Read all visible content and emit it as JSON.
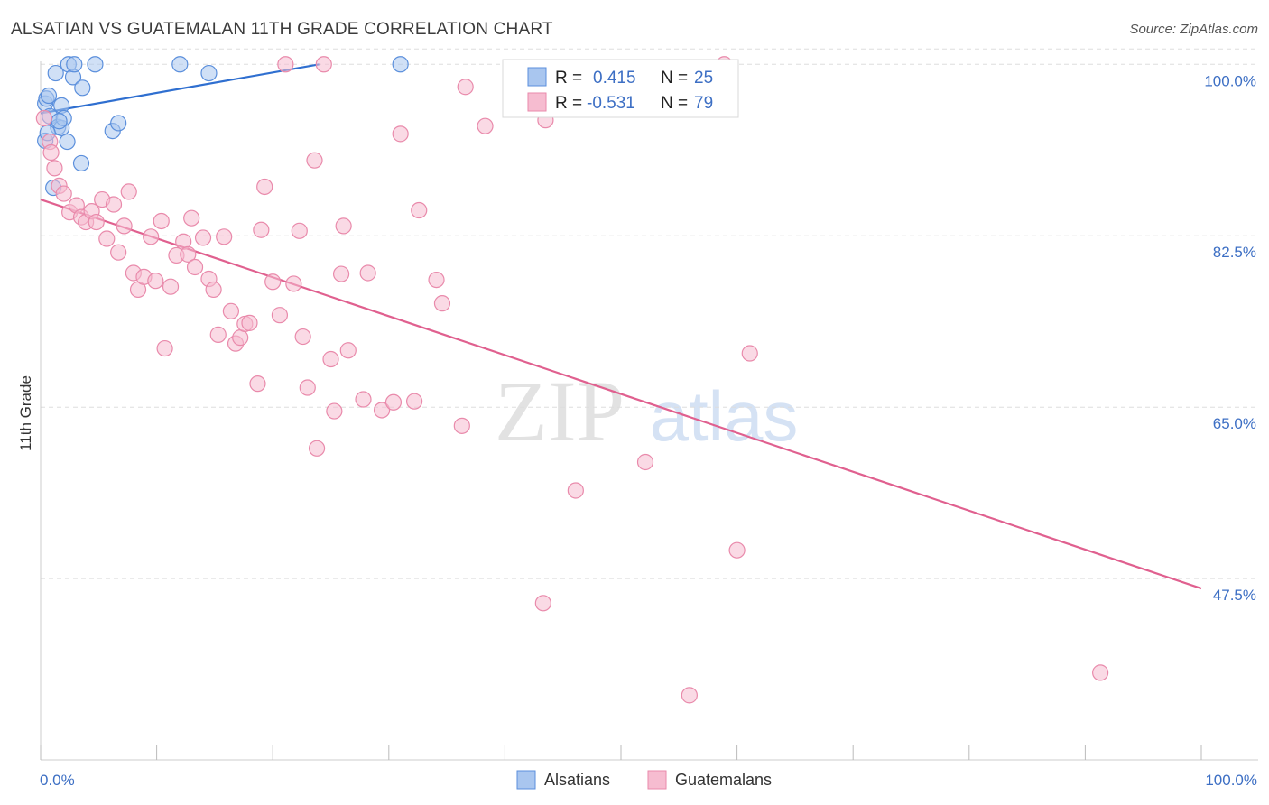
{
  "title": "ALSATIAN VS GUATEMALAN 11TH GRADE CORRELATION CHART",
  "source": "Source: ZipAtlas.com",
  "watermark": {
    "zip": "ZIP",
    "atlas": "atlas"
  },
  "colors": {
    "blue_fill": "#a9c6ef",
    "blue_stroke": "#5b8fdc",
    "blue_line": "#2f6fd0",
    "pink_fill": "#f6bcd0",
    "pink_stroke": "#e98aab",
    "pink_line": "#e0608f",
    "tick_text": "#3d6fc4",
    "grid": "#dddddd"
  },
  "legend": {
    "rows": [
      {
        "r_label": "R =",
        "r_value": "0.415",
        "n_label": "N =",
        "n_value": "25",
        "series": "blue"
      },
      {
        "r_label": "R =",
        "r_value": "-0.531",
        "n_label": "N =",
        "n_value": "79",
        "series": "pink"
      }
    ]
  },
  "chart_data": {
    "type": "scatter",
    "title": "ALSATIAN VS GUATEMALAN 11TH GRADE CORRELATION CHART",
    "xlabel": "",
    "ylabel": "11th Grade",
    "xlim": [
      0,
      100
    ],
    "ylim": [
      29,
      101.5
    ],
    "x_tick_labels": [
      "0.0%",
      "100.0%"
    ],
    "y_ticks": [
      47.5,
      65.0,
      82.5,
      100.0
    ],
    "y_tick_labels": [
      "47.5%",
      "65.0%",
      "82.5%",
      "100.0%"
    ],
    "legend_position": "bottom",
    "series": [
      {
        "name": "Alsatians",
        "color": "blue",
        "r": 0.415,
        "n": 25,
        "trend": {
          "x": [
            0,
            24
          ],
          "y": [
            95.0,
            100.0
          ]
        },
        "points": [
          [
            0.4,
            92.2
          ],
          [
            0.4,
            96.0
          ],
          [
            0.5,
            96.5
          ],
          [
            0.7,
            96.8
          ],
          [
            0.8,
            94.7
          ],
          [
            1.1,
            87.4
          ],
          [
            1.3,
            99.1
          ],
          [
            1.5,
            93.6
          ],
          [
            1.8,
            93.5
          ],
          [
            1.8,
            95.8
          ],
          [
            2.0,
            94.5
          ],
          [
            2.3,
            92.1
          ],
          [
            2.4,
            100.0
          ],
          [
            2.8,
            98.7
          ],
          [
            2.9,
            100.0
          ],
          [
            3.5,
            89.9
          ],
          [
            3.6,
            97.6
          ],
          [
            4.7,
            100.0
          ],
          [
            6.2,
            93.2
          ],
          [
            6.7,
            94.0
          ],
          [
            12.0,
            100.0
          ],
          [
            14.5,
            99.1
          ],
          [
            31.0,
            100.0
          ],
          [
            0.6,
            93.0
          ],
          [
            1.6,
            94.2
          ]
        ]
      },
      {
        "name": "Guatemalans",
        "color": "pink",
        "r": -0.531,
        "n": 79,
        "trend": {
          "x": [
            0,
            100
          ],
          "y": [
            86.2,
            46.5
          ]
        },
        "points": [
          [
            0.3,
            94.5
          ],
          [
            0.8,
            92.1
          ],
          [
            0.9,
            91.0
          ],
          [
            1.2,
            89.4
          ],
          [
            1.6,
            87.6
          ],
          [
            2.0,
            86.8
          ],
          [
            2.5,
            84.9
          ],
          [
            3.1,
            85.6
          ],
          [
            3.5,
            84.4
          ],
          [
            3.9,
            83.9
          ],
          [
            4.4,
            85.0
          ],
          [
            4.8,
            83.9
          ],
          [
            5.3,
            86.2
          ],
          [
            5.7,
            82.2
          ],
          [
            6.3,
            85.7
          ],
          [
            6.7,
            80.8
          ],
          [
            7.2,
            83.5
          ],
          [
            7.6,
            87.0
          ],
          [
            8.0,
            78.7
          ],
          [
            8.4,
            77.0
          ],
          [
            8.9,
            78.3
          ],
          [
            9.5,
            82.4
          ],
          [
            9.9,
            77.9
          ],
          [
            10.4,
            84.0
          ],
          [
            10.7,
            71.0
          ],
          [
            11.2,
            77.3
          ],
          [
            11.7,
            80.5
          ],
          [
            12.3,
            81.9
          ],
          [
            12.7,
            80.6
          ],
          [
            13.0,
            84.3
          ],
          [
            13.3,
            79.3
          ],
          [
            14.0,
            82.3
          ],
          [
            14.5,
            78.1
          ],
          [
            14.9,
            77.0
          ],
          [
            15.3,
            72.4
          ],
          [
            15.8,
            82.4
          ],
          [
            16.4,
            74.8
          ],
          [
            16.8,
            71.5
          ],
          [
            17.2,
            72.1
          ],
          [
            17.6,
            73.5
          ],
          [
            18.0,
            73.6
          ],
          [
            18.7,
            67.4
          ],
          [
            19.0,
            83.1
          ],
          [
            19.3,
            87.5
          ],
          [
            20.0,
            77.8
          ],
          [
            20.6,
            74.4
          ],
          [
            21.1,
            100.0
          ],
          [
            21.8,
            77.6
          ],
          [
            22.3,
            83.0
          ],
          [
            22.6,
            72.2
          ],
          [
            23.0,
            67.0
          ],
          [
            23.6,
            90.2
          ],
          [
            23.8,
            60.8
          ],
          [
            24.4,
            100.0
          ],
          [
            25.0,
            69.9
          ],
          [
            25.3,
            64.6
          ],
          [
            25.9,
            78.6
          ],
          [
            26.1,
            83.5
          ],
          [
            26.5,
            70.8
          ],
          [
            27.8,
            65.8
          ],
          [
            28.2,
            78.7
          ],
          [
            29.4,
            64.7
          ],
          [
            30.4,
            65.5
          ],
          [
            31.0,
            92.9
          ],
          [
            32.2,
            65.6
          ],
          [
            32.6,
            85.1
          ],
          [
            34.1,
            78.0
          ],
          [
            34.6,
            75.6
          ],
          [
            36.3,
            63.1
          ],
          [
            36.6,
            97.7
          ],
          [
            38.3,
            93.7
          ],
          [
            43.5,
            94.3
          ],
          [
            43.3,
            45.0
          ],
          [
            46.1,
            56.5
          ],
          [
            52.1,
            59.4
          ],
          [
            55.9,
            35.6
          ],
          [
            58.9,
            100.0
          ],
          [
            60.0,
            50.4
          ],
          [
            61.1,
            70.5
          ],
          [
            91.3,
            37.9
          ]
        ]
      }
    ]
  },
  "bottom_legend": [
    {
      "label": "Alsatians",
      "series": "blue"
    },
    {
      "label": "Guatemalans",
      "series": "pink"
    }
  ]
}
